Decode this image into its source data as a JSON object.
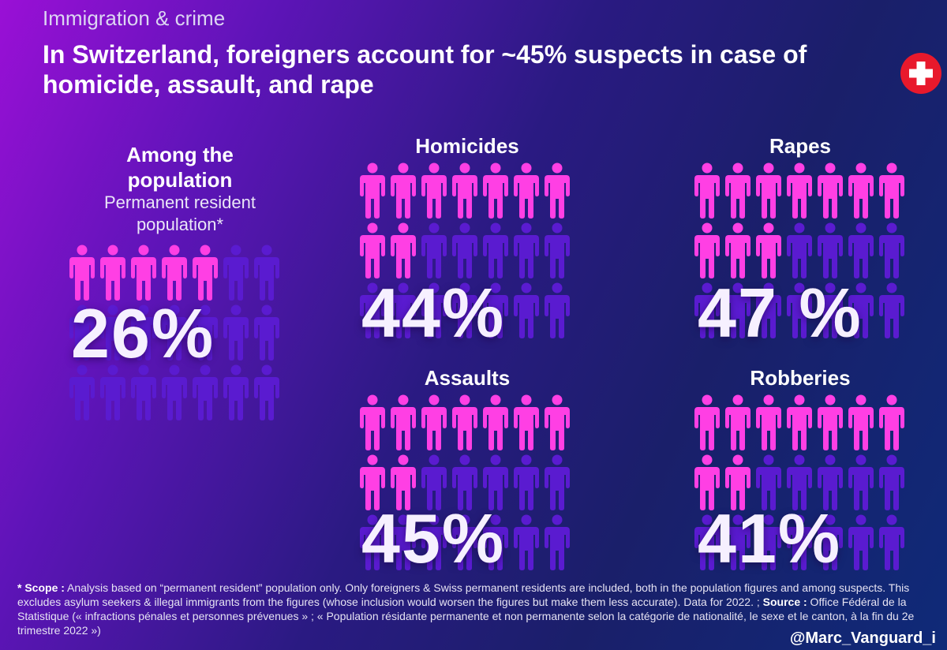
{
  "header": {
    "topic": "Immigration & crime",
    "title": "In Switzerland, foreigners account for ~45% suspects in case of homicide, assault, and rape"
  },
  "colors": {
    "foreigner_icon": "#ff3fe4",
    "swiss_icon": "#5a1bd0",
    "flag_red": "#e8192c"
  },
  "icons": {
    "person": "person-icon",
    "flag": "swiss-flag-icon"
  },
  "chart_data": [
    {
      "type": "pictogram",
      "title": "Among the population",
      "subtitle": "Permanent resident population*",
      "percent_label": "26%",
      "value": 26,
      "icons_total": 21,
      "icons_highlighted": 5
    },
    {
      "type": "pictogram",
      "title": "Homicides",
      "percent_label": "44%",
      "value": 44,
      "icons_total": 21,
      "icons_highlighted": 9
    },
    {
      "type": "pictogram",
      "title": "Rapes",
      "percent_label": "47 %",
      "value": 47,
      "icons_total": 21,
      "icons_highlighted": 10
    },
    {
      "type": "pictogram",
      "title": "Assaults",
      "percent_label": "45%",
      "value": 45,
      "icons_total": 21,
      "icons_highlighted": 9
    },
    {
      "type": "pictogram",
      "title": "Robberies",
      "percent_label": "41%",
      "value": 41,
      "icons_total": 21,
      "icons_highlighted": 9
    }
  ],
  "footer": {
    "scope_label": "* Scope :",
    "scope_text": " Analysis based on “permanent resident” population only. Only foreigners & Swiss permanent residents are included, both in the population figures and among suspects. This excludes asylum seekers & illegal immigrants from the figures (whose inclusion would worsen the figures but make them less accurate). Data for 2022. ;",
    "source_label": " Source :",
    "source_text": " Office Fédéral de la Statistique (« infractions pénales et personnes prévenues » ; « Population résidante permanente et non permanente selon la catégorie de nationalité, le sexe et le canton, à la fin du 2e trimestre 2022 »)",
    "handle": "@Marc_Vanguard_i"
  }
}
